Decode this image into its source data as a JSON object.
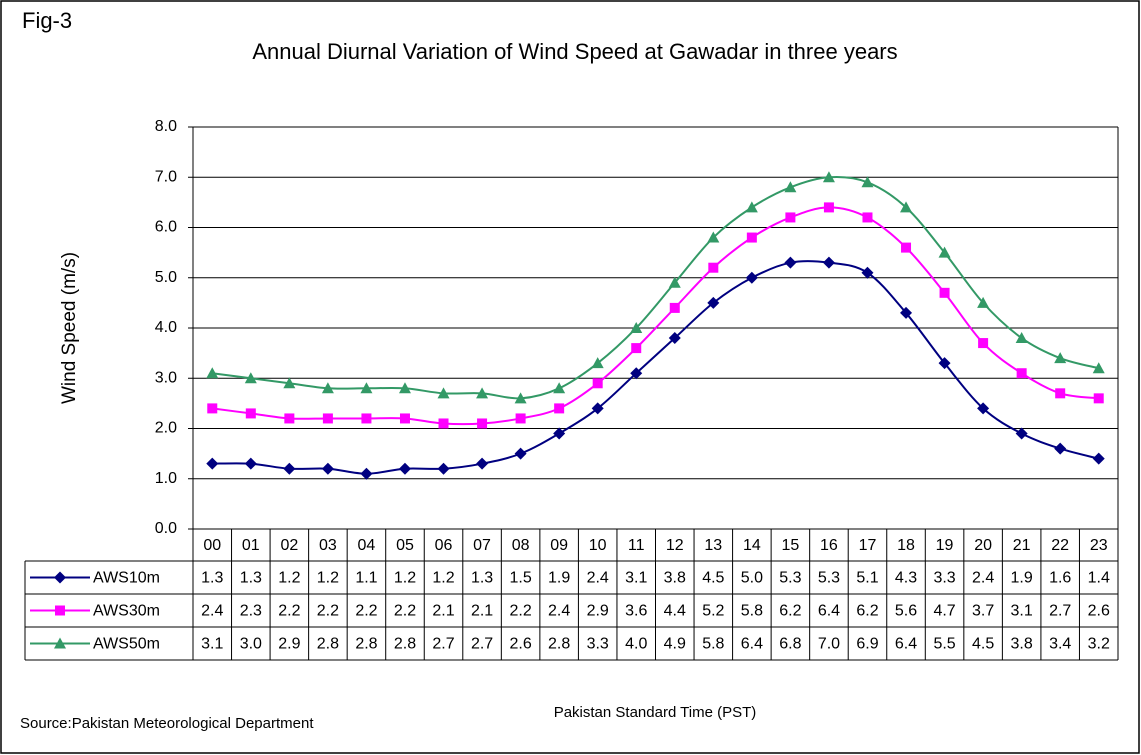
{
  "chart_data": {
    "type": "line",
    "figure_label": "Fig-3",
    "title": "Annual Diurnal Variation of Wind Speed at Gawadar in three years",
    "y_label": "Wind Speed (m/s)",
    "x_label": "Pakistan Standard Time (PST)",
    "source": "Source:Pakistan Meteorological Department",
    "categories": [
      "00",
      "01",
      "02",
      "03",
      "04",
      "05",
      "06",
      "07",
      "08",
      "09",
      "10",
      "11",
      "12",
      "13",
      "14",
      "15",
      "16",
      "17",
      "18",
      "19",
      "20",
      "21",
      "22",
      "23"
    ],
    "ylim": [
      0,
      8
    ],
    "yticks": [
      {
        "value": 0,
        "label": "0.0"
      },
      {
        "value": 1,
        "label": "1.0"
      },
      {
        "value": 2,
        "label": "2.0"
      },
      {
        "value": 3,
        "label": "3.0"
      },
      {
        "value": 4,
        "label": "4.0"
      },
      {
        "value": 5,
        "label": "5.0"
      },
      {
        "value": 6,
        "label": "6.0"
      },
      {
        "value": 7,
        "label": "7.0"
      },
      {
        "value": 8,
        "label": "8.0"
      }
    ],
    "grid": true,
    "smooth": true,
    "series": [
      {
        "name": "AWS10m",
        "color": "#000080",
        "marker": "diamond",
        "values": [
          1.3,
          1.3,
          1.2,
          1.2,
          1.1,
          1.2,
          1.2,
          1.3,
          1.5,
          1.9,
          2.4,
          3.1,
          3.8,
          4.5,
          5.0,
          5.3,
          5.3,
          5.1,
          4.3,
          3.3,
          2.4,
          1.9,
          1.6,
          1.4
        ],
        "value_labels": [
          "1.3",
          "1.3",
          "1.2",
          "1.2",
          "1.1",
          "1.2",
          "1.2",
          "1.3",
          "1.5",
          "1.9",
          "2.4",
          "3.1",
          "3.8",
          "4.5",
          "5.0",
          "5.3",
          "5.3",
          "5.1",
          "4.3",
          "3.3",
          "2.4",
          "1.9",
          "1.6",
          "1.4"
        ]
      },
      {
        "name": "AWS30m",
        "color": "#ff00ff",
        "marker": "square",
        "values": [
          2.4,
          2.3,
          2.2,
          2.2,
          2.2,
          2.2,
          2.1,
          2.1,
          2.2,
          2.4,
          2.9,
          3.6,
          4.4,
          5.2,
          5.8,
          6.2,
          6.4,
          6.2,
          5.6,
          4.7,
          3.7,
          3.1,
          2.7,
          2.6
        ],
        "value_labels": [
          "2.4",
          "2.3",
          "2.2",
          "2.2",
          "2.2",
          "2.2",
          "2.1",
          "2.1",
          "2.2",
          "2.4",
          "2.9",
          "3.6",
          "4.4",
          "5.2",
          "5.8",
          "6.2",
          "6.4",
          "6.2",
          "5.6",
          "4.7",
          "3.7",
          "3.1",
          "2.7",
          "2.6"
        ]
      },
      {
        "name": "AWS50m",
        "color": "#339966",
        "marker": "triangle",
        "values": [
          3.1,
          3.0,
          2.9,
          2.8,
          2.8,
          2.8,
          2.7,
          2.7,
          2.6,
          2.8,
          3.3,
          4.0,
          4.9,
          5.8,
          6.4,
          6.8,
          7.0,
          6.9,
          6.4,
          5.5,
          4.5,
          3.8,
          3.4,
          3.2
        ],
        "value_labels": [
          "3.1",
          "3.0",
          "2.9",
          "2.8",
          "2.8",
          "2.8",
          "2.7",
          "2.7",
          "2.6",
          "2.8",
          "3.3",
          "4.0",
          "4.9",
          "5.8",
          "6.4",
          "6.8",
          "7.0",
          "6.9",
          "6.4",
          "5.5",
          "4.5",
          "3.8",
          "3.4",
          "3.2"
        ]
      }
    ]
  }
}
